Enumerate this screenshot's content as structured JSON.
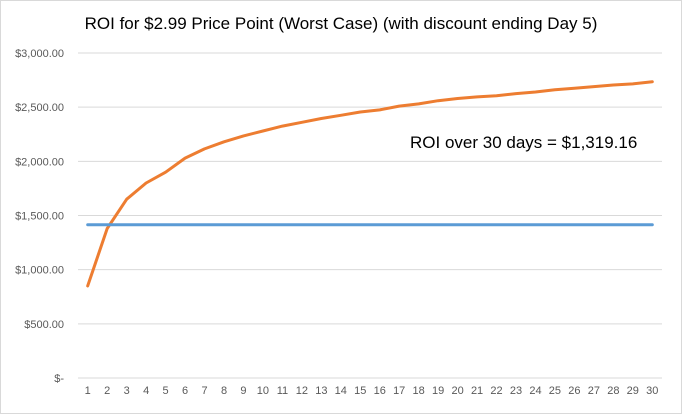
{
  "chart_data": {
    "type": "line",
    "title": "ROI for $2.99 Price Point (Worst Case) (with discount ending Day 5)",
    "annotation": "ROI over 30 days = $1,319.16",
    "x": [
      1,
      2,
      3,
      4,
      5,
      6,
      7,
      8,
      9,
      10,
      11,
      12,
      13,
      14,
      15,
      16,
      17,
      18,
      19,
      20,
      21,
      22,
      23,
      24,
      25,
      26,
      27,
      28,
      29,
      30
    ],
    "x_tick_labels": [
      "1",
      "2",
      "3",
      "4",
      "5",
      "6",
      "7",
      "8",
      "9",
      "10",
      "11",
      "12",
      "13",
      "14",
      "15",
      "16",
      "17",
      "18",
      "19",
      "20",
      "21",
      "22",
      "23",
      "24",
      "25",
      "26",
      "27",
      "28",
      "29",
      "30"
    ],
    "y_tick_labels": [
      "$-",
      "$500.00",
      "$1,000.00",
      "$1,500.00",
      "$2,000.00",
      "$2,500.00",
      "$3,000.00"
    ],
    "y_ticks": [
      0,
      500,
      1000,
      1500,
      2000,
      2500,
      3000
    ],
    "ylim": [
      0,
      3000
    ],
    "grid": true,
    "legend": "none",
    "series": [
      {
        "color": "#ED7D31",
        "values": [
          850,
          1380,
          1650,
          1800,
          1900,
          2030,
          2115,
          2180,
          2235,
          2280,
          2325,
          2360,
          2395,
          2425,
          2455,
          2475,
          2510,
          2530,
          2560,
          2580,
          2595,
          2605,
          2625,
          2640,
          2660,
          2675,
          2690,
          2705,
          2715,
          2735
        ]
      },
      {
        "color": "#5B9BD5",
        "values": [
          1415,
          1415,
          1415,
          1415,
          1415,
          1415,
          1415,
          1415,
          1415,
          1415,
          1415,
          1415,
          1415,
          1415,
          1415,
          1415,
          1415,
          1415,
          1415,
          1415,
          1415,
          1415,
          1415,
          1415,
          1415,
          1415,
          1415,
          1415,
          1415,
          1415
        ]
      }
    ],
    "gridline_color": "#D9D9D9"
  }
}
